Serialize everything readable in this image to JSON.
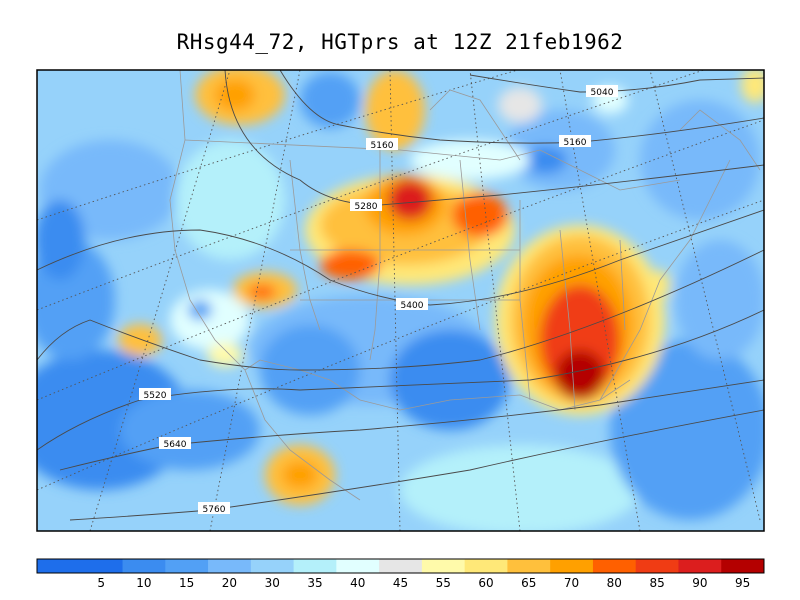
{
  "title": "RHsg44_72, HGTprs at 12Z  21feb1962",
  "colorbar": {
    "labels": [
      "5",
      "10",
      "15",
      "20",
      "30",
      "35",
      "40",
      "45",
      "55",
      "60",
      "65",
      "70",
      "80",
      "85",
      "90",
      "95"
    ],
    "colors": [
      "#1e6eeb",
      "#3b8cf0",
      "#52a0f5",
      "#78b9fa",
      "#96d2fa",
      "#b4f0fa",
      "#e1ffff",
      "#e6e6e6",
      "#fffaaa",
      "#ffe878",
      "#ffc03c",
      "#ffa000",
      "#ff6000",
      "#f03c14",
      "#dc1e1e",
      "#b40000"
    ]
  },
  "contours": [
    {
      "label": "5040"
    },
    {
      "label": "5160"
    },
    {
      "label": "5160"
    },
    {
      "label": "5280"
    },
    {
      "label": "5400"
    },
    {
      "label": "5520"
    },
    {
      "label": "5640"
    },
    {
      "label": "5760"
    }
  ]
}
